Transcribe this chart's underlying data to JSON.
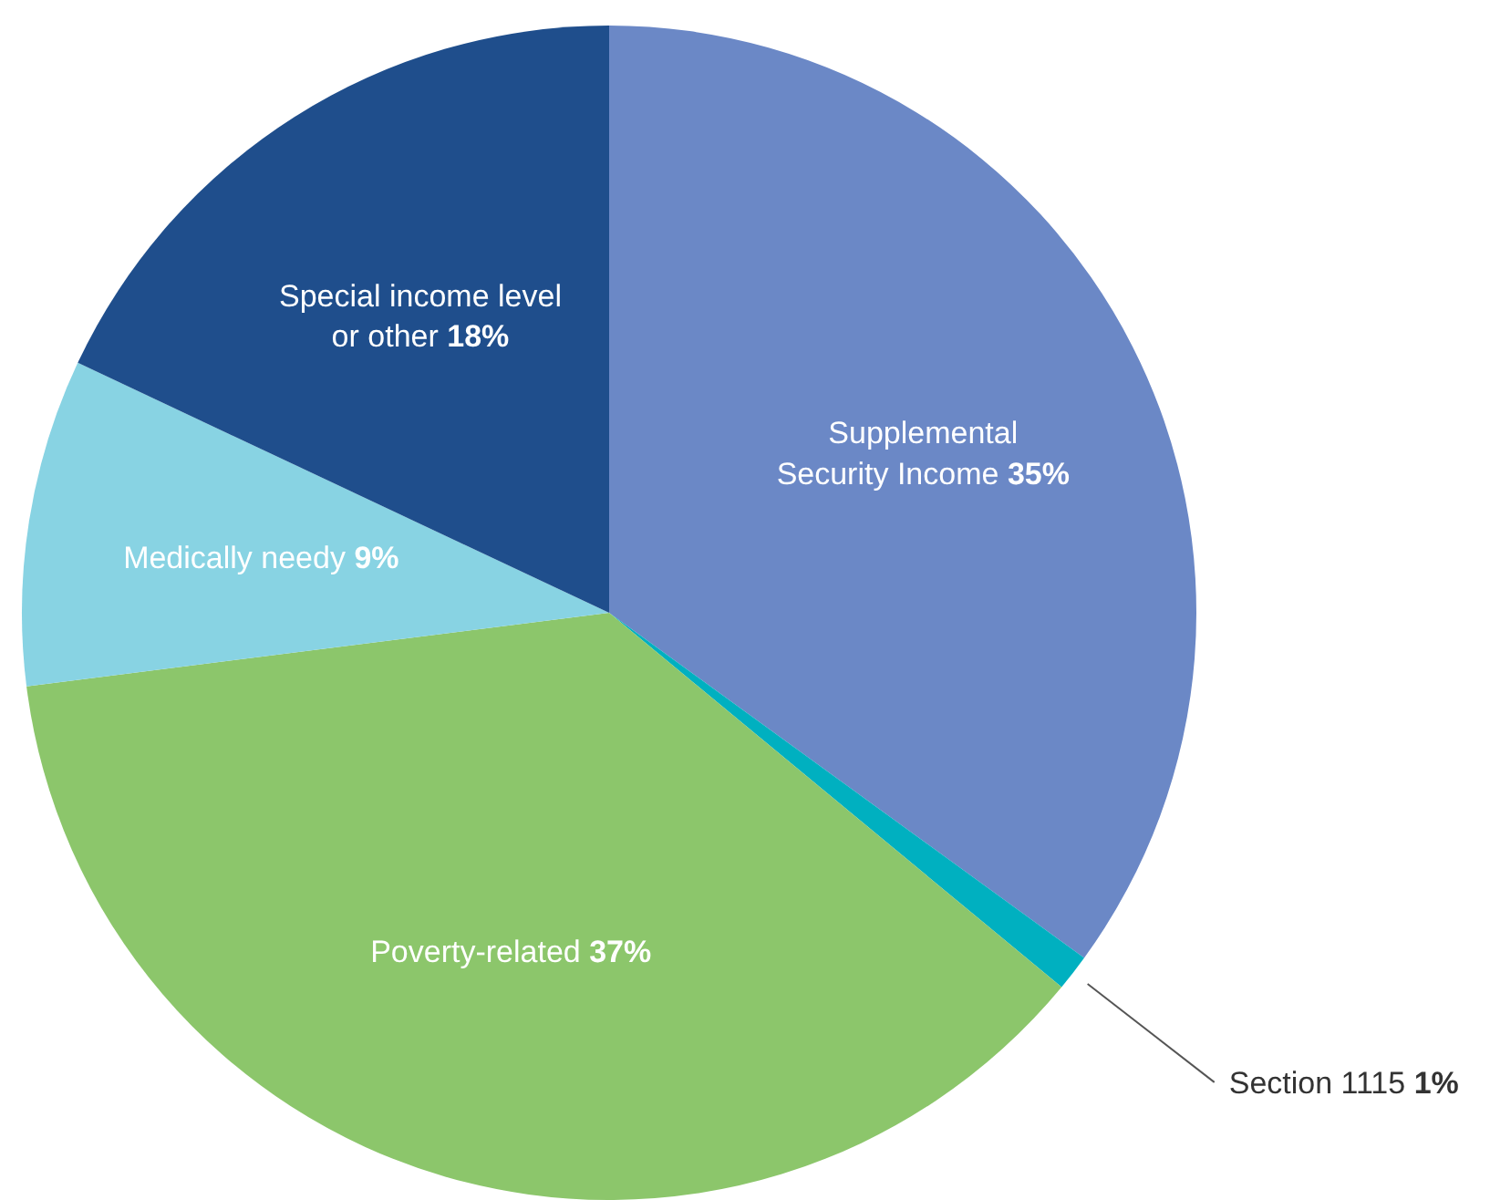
{
  "chart_data": {
    "type": "pie",
    "categories": [
      "Supplemental Security Income",
      "Section 1115",
      "Poverty-related",
      "Medically needy",
      "Special income level or other"
    ],
    "values": [
      35,
      1,
      37,
      9,
      18
    ],
    "value_labels": [
      "35%",
      "1%",
      "37%",
      "9%",
      "18%"
    ],
    "colors": [
      "#6b88c6",
      "#00b0c0",
      "#8cc66b",
      "#88d3e3",
      "#1f4e8c"
    ]
  }
}
